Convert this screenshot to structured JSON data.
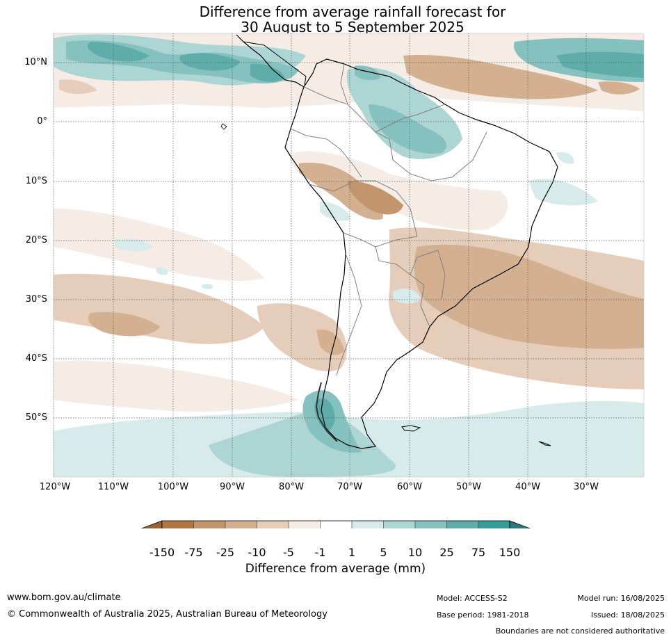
{
  "title": {
    "line1": "Difference from average rainfall forecast for",
    "line2": "30 August to 5 September 2025"
  },
  "axes": {
    "latitude_labels": [
      "10°N",
      "0°",
      "10°S",
      "20°S",
      "30°S",
      "40°S",
      "50°S"
    ],
    "longitude_labels": [
      "120°W",
      "110°W",
      "100°W",
      "90°W",
      "80°W",
      "70°W",
      "60°W",
      "50°W",
      "40°W",
      "30°W"
    ]
  },
  "legend": {
    "title": "Difference from average (mm)",
    "ticks": [
      "-150",
      "-75",
      "-25",
      "-10",
      "-5",
      "-1",
      "1",
      "5",
      "10",
      "25",
      "75",
      "150"
    ],
    "colors": [
      "#9c6233",
      "#b07740",
      "#c3956a",
      "#d3b090",
      "#e5cdb9",
      "#f5ece6",
      "#ffffff",
      "#d6ebea",
      "#acd5d4",
      "#85c1bf",
      "#5eadab",
      "#359c98",
      "#277a76"
    ]
  },
  "footer": {
    "website": "www.bom.gov.au/climate",
    "copyright": "© Commonwealth of Australia 2025, Australian Bureau of Meteorology",
    "model": "Model: ACCESS-S2",
    "base_period": "Base period: 1981-2018",
    "model_run": "Model run: 16/08/2025",
    "issued": "Issued: 18/08/2025",
    "disclaimer": "Boundaries are not considered authoritative"
  }
}
